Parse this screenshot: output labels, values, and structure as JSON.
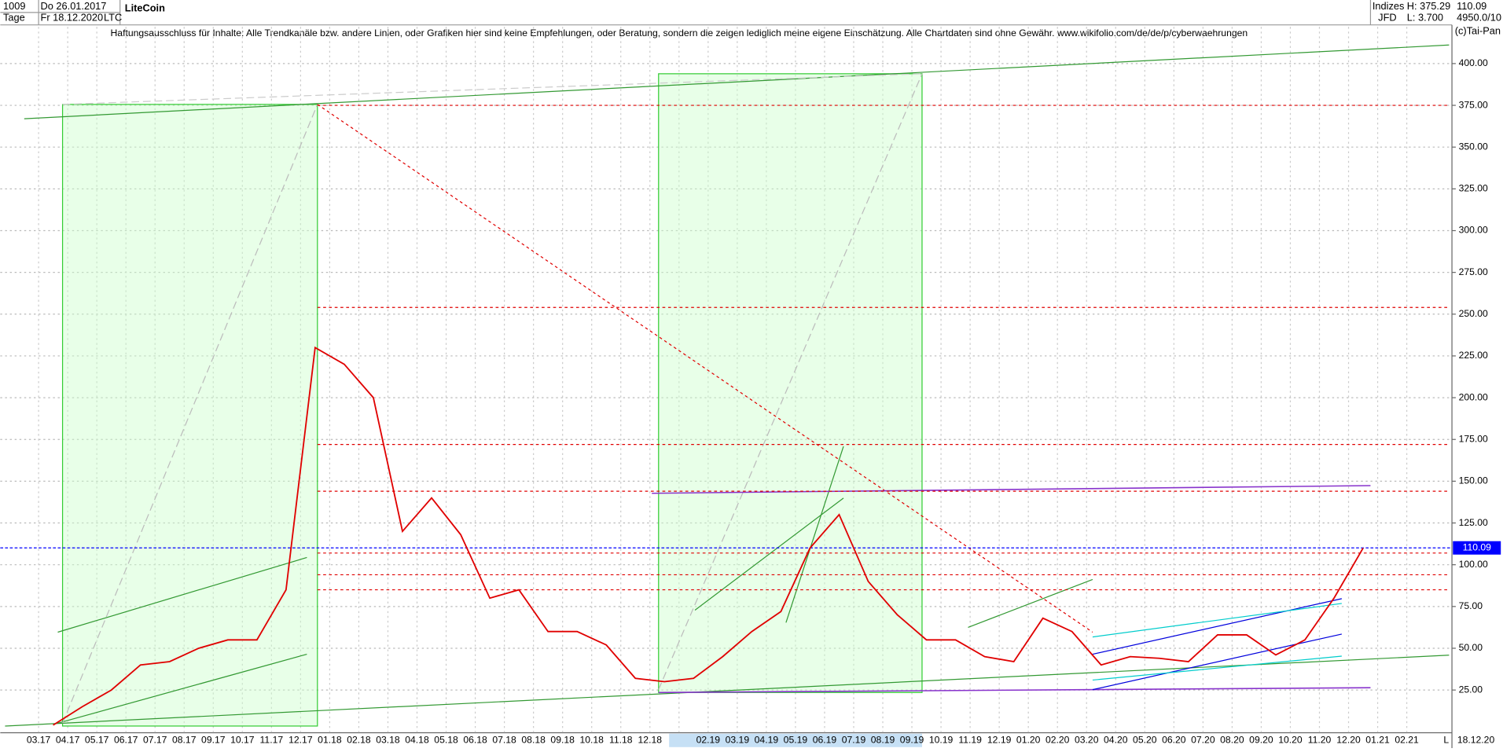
{
  "header": {
    "id": "1009",
    "date_from": "Do 26.01.2017",
    "period": "Tage",
    "date_to": "Fr 18.12.2020",
    "name": "LiteCoin",
    "symbol": "LTC",
    "group": "Indizes",
    "broker": "JFD",
    "high": "H: 375.29",
    "low": "L: 3.700",
    "scale": "4950.0/10",
    "copyright": "(c)Tai-Pan"
  },
  "chart_data": {
    "type": "line",
    "disclaimer": "Haftungsausschluss für Inhalte: Alle Trendkanäle bzw. andere Linien, oder Grafiken hier sind keine Empfehlungen, oder Beratung, sondern die zeigen lediglich meine eigene Einschätzung. Alle Chartdaten sind ohne Gewähr.  www.wikifolio.com/de/de/p/cyberwaehrungen",
    "categories": [
      "03.17",
      "04.17",
      "05.17",
      "06.17",
      "07.17",
      "08.17",
      "09.17",
      "10.17",
      "11.17",
      "12.17",
      "01.18",
      "02.18",
      "03.18",
      "04.18",
      "05.18",
      "06.18",
      "07.18",
      "08.18",
      "09.18",
      "10.18",
      "11.18",
      "12.18",
      null,
      "02.19",
      "03.19",
      "04.19",
      "05.19",
      "06.19",
      "07.19",
      "08.19",
      "09.19",
      "10.19",
      "11.19",
      "12.19",
      "01.20",
      "02.20",
      "03.20",
      "04.20",
      "05.20",
      "06.20",
      "07.20",
      "08.20",
      "09.20",
      "10.20",
      "11.20",
      "12.20",
      "01.21",
      "02.21"
    ],
    "series": [
      {
        "name": "LTC",
        "color": "#e00000",
        "values": [
          4,
          15,
          25,
          40,
          42,
          50,
          55,
          55,
          85,
          230,
          220,
          200,
          120,
          140,
          118,
          80,
          85,
          60,
          60,
          52,
          32,
          30,
          32,
          45,
          60,
          72,
          110,
          130,
          90,
          70,
          55,
          55,
          45,
          42,
          68,
          60,
          40,
          45,
          44,
          42,
          58,
          58,
          46,
          55,
          80,
          110,
          null,
          null
        ]
      }
    ],
    "ylim": [
      0,
      422
    ],
    "yticks": [
      {
        "value": 25,
        "label": "25.00"
      },
      {
        "value": 50,
        "label": "50.00"
      },
      {
        "value": 75,
        "label": "75.00"
      },
      {
        "value": 100,
        "label": "100.00"
      },
      {
        "value": 125,
        "label": "125.00"
      },
      {
        "value": 150,
        "label": "150.00"
      },
      {
        "value": 175,
        "label": "175.00"
      },
      {
        "value": 200,
        "label": "200.00"
      },
      {
        "value": 225,
        "label": "225.00"
      },
      {
        "value": 250,
        "label": "250.00"
      },
      {
        "value": 275,
        "label": "275.00"
      },
      {
        "value": 300,
        "label": "300.00"
      },
      {
        "value": 325,
        "label": "325.00"
      },
      {
        "value": 350,
        "label": "350.00"
      },
      {
        "value": 375,
        "label": "375.00"
      },
      {
        "value": 400,
        "label": "400.00"
      }
    ],
    "grid": true,
    "last_price": 110.09,
    "last_price_color": "#0000ff",
    "levels": [
      375,
      254,
      172,
      144,
      107,
      94,
      85
    ],
    "level_color": "#e00000",
    "last_date": "18.12.20",
    "axis_mode": "L"
  }
}
